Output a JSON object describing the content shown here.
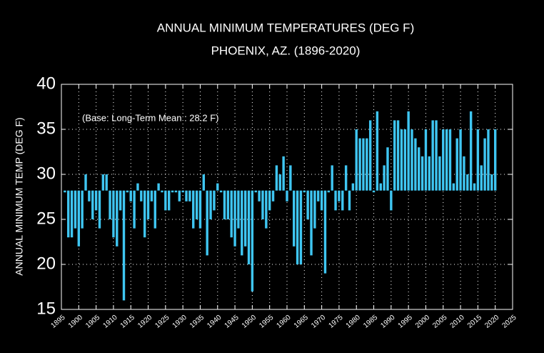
{
  "chart_data": {
    "type": "bar",
    "title": "ANNUAL MINIMUM TEMPERATURES (DEG F)",
    "subtitle": "PHOENIX, AZ. (1896-2020)",
    "y_label": "ANNUAL MINIMUM TEMP (DEG F)",
    "annotation": "(Base: Long-Term Mean : 28.2 F)",
    "base": 28.2,
    "color": "#3fc6f2",
    "grid": true,
    "x": [
      1896,
      1897,
      1898,
      1899,
      1900,
      1901,
      1902,
      1903,
      1904,
      1905,
      1906,
      1907,
      1908,
      1909,
      1910,
      1911,
      1912,
      1913,
      1914,
      1915,
      1916,
      1917,
      1918,
      1919,
      1920,
      1921,
      1922,
      1923,
      1924,
      1925,
      1926,
      1927,
      1928,
      1929,
      1930,
      1931,
      1932,
      1933,
      1934,
      1935,
      1936,
      1937,
      1938,
      1939,
      1940,
      1941,
      1942,
      1943,
      1944,
      1945,
      1946,
      1947,
      1948,
      1949,
      1950,
      1951,
      1952,
      1953,
      1954,
      1955,
      1956,
      1957,
      1958,
      1959,
      1960,
      1961,
      1962,
      1963,
      1964,
      1965,
      1966,
      1967,
      1968,
      1969,
      1970,
      1971,
      1972,
      1973,
      1974,
      1975,
      1976,
      1977,
      1978,
      1979,
      1980,
      1981,
      1982,
      1983,
      1984,
      1985,
      1986,
      1987,
      1988,
      1989,
      1990,
      1991,
      1992,
      1993,
      1994,
      1995,
      1996,
      1997,
      1998,
      1999,
      2000,
      2001,
      2002,
      2003,
      2004,
      2005,
      2006,
      2007,
      2008,
      2009,
      2010,
      2011,
      2012,
      2013,
      2014,
      2015,
      2016,
      2017,
      2018,
      2019,
      2020
    ],
    "values": [
      28,
      23,
      23,
      24,
      22,
      24,
      30,
      27,
      25,
      26,
      24,
      30,
      30,
      25,
      23,
      22,
      26,
      16,
      28,
      27,
      24,
      29,
      27,
      23,
      25,
      27,
      24,
      29,
      28,
      26,
      26,
      28,
      28,
      27,
      28,
      27,
      27,
      24,
      25,
      24,
      30,
      21,
      25,
      26,
      29,
      28,
      25,
      25,
      23,
      22,
      24,
      21,
      22,
      20,
      17,
      28,
      27,
      25,
      24,
      26,
      27,
      31,
      30,
      32,
      27,
      31,
      22,
      20,
      20,
      28,
      25,
      21,
      24,
      27,
      26,
      19,
      28,
      31,
      26,
      27,
      26,
      31,
      26,
      29,
      35,
      34,
      34,
      34,
      36,
      28,
      37,
      29,
      31,
      33,
      26,
      36,
      36,
      35,
      35,
      37,
      35,
      34,
      33,
      32,
      35,
      32,
      36,
      36,
      32,
      35,
      35,
      35,
      29,
      34,
      35,
      32,
      30,
      37,
      29,
      35,
      31,
      34,
      35,
      30,
      35
    ],
    "xlim": [
      1895,
      2025
    ],
    "xticks": [
      1895,
      1900,
      1905,
      1910,
      1915,
      1920,
      1925,
      1930,
      1935,
      1940,
      1945,
      1950,
      1955,
      1960,
      1965,
      1970,
      1975,
      1980,
      1985,
      1990,
      1995,
      2000,
      2005,
      2010,
      2015,
      2020,
      2025
    ],
    "ylim": [
      15,
      40
    ],
    "yticks": [
      15,
      20,
      25,
      30,
      35,
      40
    ]
  }
}
